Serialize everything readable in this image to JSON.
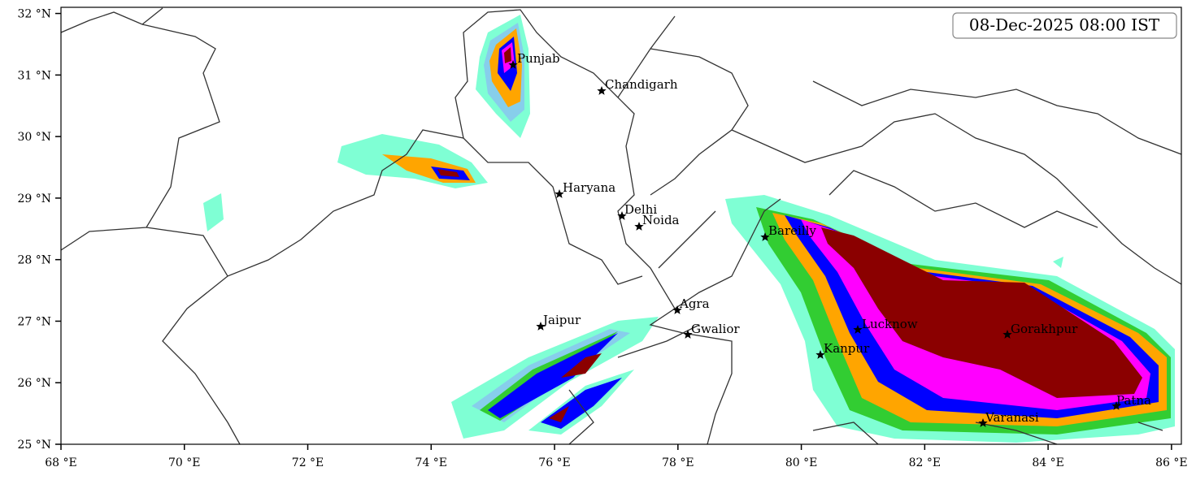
{
  "map": {
    "title": "08-Dec-2025 08:00 IST",
    "xlim": [
      68,
      86.16
    ],
    "ylim": [
      25,
      32.1
    ],
    "xticks": [
      {
        "value": 68,
        "label": "68 °E"
      },
      {
        "value": 70,
        "label": "70 °E"
      },
      {
        "value": 72,
        "label": "72 °E"
      },
      {
        "value": 74,
        "label": "74 °E"
      },
      {
        "value": 76,
        "label": "76 °E"
      },
      {
        "value": 78,
        "label": "78 °E"
      },
      {
        "value": 80,
        "label": "80 °E"
      },
      {
        "value": 82,
        "label": "82 °E"
      },
      {
        "value": 84,
        "label": "84 °E"
      },
      {
        "value": 86,
        "label": "86 °E"
      }
    ],
    "yticks": [
      {
        "value": 25,
        "label": "25 °N"
      },
      {
        "value": 26,
        "label": "26 °N"
      },
      {
        "value": 27,
        "label": "27 °N"
      },
      {
        "value": 28,
        "label": "28 °N"
      },
      {
        "value": 29,
        "label": "29 °N"
      },
      {
        "value": 30,
        "label": "30 °N"
      },
      {
        "value": 31,
        "label": "31 °N"
      },
      {
        "value": 32,
        "label": "32 °N"
      }
    ],
    "cities": [
      "Punjab",
      "Chandigarh",
      "Haryana",
      "Delhi",
      "Noida",
      "Bareilly",
      "Agra",
      "Jaipur",
      "Gwalior",
      "Lucknow",
      "Gorakhpur",
      "Kanpur",
      "Patna",
      "Varanasi"
    ]
  }
}
